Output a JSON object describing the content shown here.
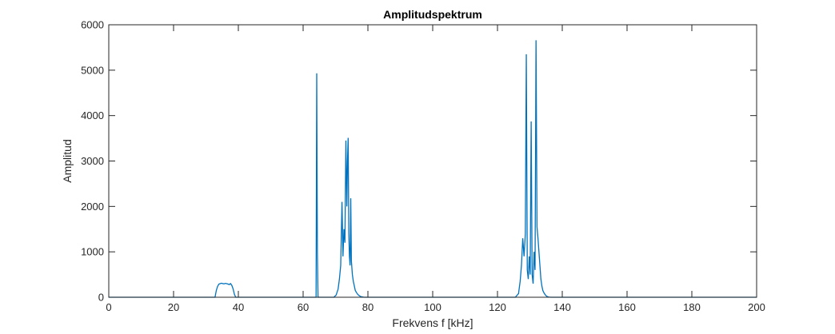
{
  "chart_data": {
    "type": "line",
    "title": "Amplitudspektrum",
    "xlabel": "Frekvens f [kHz]",
    "ylabel": "Amplitud",
    "xlim": [
      0,
      200
    ],
    "ylim": [
      0,
      6000
    ],
    "xticks": [
      0,
      20,
      40,
      60,
      80,
      100,
      120,
      140,
      160,
      180,
      200
    ],
    "yticks": [
      0,
      1000,
      2000,
      3000,
      4000,
      5000,
      6000
    ],
    "grid": false,
    "line_color": "#0072BD",
    "series": [
      {
        "x": [
          0,
          32.8,
          33.2,
          33.6,
          34.0,
          34.4,
          34.8,
          35.2,
          35.6,
          36.0,
          36.4,
          36.8,
          37.2,
          37.6,
          38.0,
          38.4,
          38.8,
          39.2,
          64.0,
          64.2,
          64.4,
          64.6,
          69.5,
          70.2,
          70.8,
          71.2,
          71.6,
          72.0,
          72.3,
          72.6,
          72.9,
          73.2,
          73.5,
          73.7,
          73.9,
          74.1,
          74.3,
          74.5,
          74.7,
          74.9,
          75.2,
          75.5,
          75.8,
          76.1,
          76.5,
          76.9,
          77.4,
          78.0,
          78.8,
          125.5,
          126.5,
          127.0,
          127.4,
          127.8,
          128.2,
          128.6,
          128.9,
          129.2,
          129.5,
          129.8,
          130.1,
          130.4,
          130.7,
          131.0,
          131.3,
          131.6,
          131.9,
          132.2,
          132.5,
          132.8,
          133.1,
          133.4,
          133.7,
          134.0,
          134.4,
          134.8,
          135.2,
          135.8,
          136.5,
          200
        ],
        "y": [
          0,
          0,
          150,
          240,
          290,
          300,
          310,
          300,
          295,
          305,
          300,
          290,
          280,
          300,
          260,
          180,
          60,
          0,
          0,
          4930,
          1000,
          0,
          0,
          50,
          180,
          400,
          700,
          2100,
          900,
          1500,
          1200,
          3450,
          2000,
          3000,
          3510,
          1400,
          900,
          700,
          2180,
          800,
          500,
          350,
          250,
          150,
          100,
          60,
          30,
          10,
          0,
          0,
          80,
          350,
          700,
          1300,
          900,
          1400,
          5350,
          600,
          400,
          900,
          500,
          3870,
          500,
          300,
          1000,
          600,
          5660,
          1550,
          1300,
          1000,
          700,
          400,
          250,
          150,
          90,
          50,
          20,
          5,
          0,
          0
        ]
      }
    ]
  }
}
